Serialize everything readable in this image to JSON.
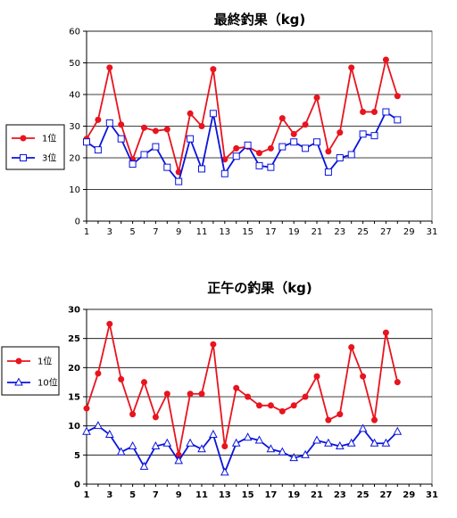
{
  "chart_data": [
    {
      "type": "line",
      "title": "最終釣果（kg)",
      "xlabel": "",
      "ylabel": "",
      "xlim": [
        1,
        31
      ],
      "ylim": [
        0,
        60
      ],
      "x_ticks": [
        1,
        3,
        5,
        7,
        9,
        11,
        13,
        15,
        17,
        19,
        21,
        23,
        25,
        27,
        29,
        31
      ],
      "y_ticks": [
        0,
        10,
        20,
        30,
        40,
        50,
        60
      ],
      "grid": "horizontal",
      "legend_position": "left",
      "x": [
        1,
        2,
        3,
        4,
        5,
        6,
        7,
        8,
        9,
        10,
        11,
        12,
        13,
        14,
        15,
        16,
        17,
        18,
        19,
        20,
        21,
        22,
        23,
        24,
        25,
        26,
        27,
        28
      ],
      "series": [
        {
          "name": "1位",
          "color": "#e8141e",
          "marker": "filled-circle",
          "values": [
            26,
            32,
            48.5,
            30.5,
            19.5,
            29.5,
            28.5,
            29,
            15.5,
            34,
            30,
            48,
            19.5,
            23,
            23.5,
            21.5,
            23,
            32.5,
            27.5,
            30.5,
            39,
            22,
            28,
            48.5,
            34.5,
            34.5,
            51,
            39.5
          ]
        },
        {
          "name": "3位",
          "color": "#0a14dc",
          "marker": "hollow-square",
          "values": [
            25,
            22.5,
            31,
            26,
            18,
            21,
            23.5,
            17,
            12.5,
            26,
            16.5,
            34,
            15,
            20.5,
            24,
            17.5,
            17,
            23.5,
            25,
            23,
            25,
            15.5,
            20,
            21,
            27.5,
            27,
            34.5,
            32
          ]
        }
      ]
    },
    {
      "type": "line",
      "title": "正午の釣果（kg)",
      "xlabel": "",
      "ylabel": "",
      "xlim": [
        1,
        31
      ],
      "ylim": [
        0,
        30
      ],
      "x_ticks": [
        1,
        3,
        5,
        7,
        9,
        11,
        13,
        15,
        17,
        19,
        21,
        23,
        25,
        27,
        29,
        31
      ],
      "y_ticks": [
        0,
        5,
        10,
        15,
        20,
        25,
        30
      ],
      "grid": "horizontal",
      "legend_position": "left",
      "x": [
        1,
        2,
        3,
        4,
        5,
        6,
        7,
        8,
        9,
        10,
        11,
        12,
        13,
        14,
        15,
        16,
        17,
        18,
        19,
        20,
        21,
        22,
        23,
        24,
        25,
        26,
        27,
        28
      ],
      "series": [
        {
          "name": "1位",
          "color": "#e8141e",
          "marker": "filled-circle",
          "values": [
            13,
            19,
            27.5,
            18,
            12,
            17.5,
            11.5,
            15.5,
            5,
            15.5,
            15.5,
            24,
            6.5,
            16.5,
            15,
            13.5,
            13.5,
            12.5,
            13.5,
            15,
            18.5,
            11,
            12,
            23.5,
            18.5,
            11,
            26,
            17.5
          ]
        },
        {
          "name": "10位",
          "color": "#0a14dc",
          "marker": "hollow-triangle",
          "values": [
            9,
            10,
            8.5,
            5.5,
            6.5,
            3,
            6.5,
            7,
            4,
            7,
            6,
            8.5,
            2,
            7,
            8,
            7.5,
            6,
            5.5,
            4.5,
            5,
            7.5,
            7,
            6.5,
            7,
            9.5,
            7,
            7,
            9
          ]
        }
      ]
    }
  ]
}
